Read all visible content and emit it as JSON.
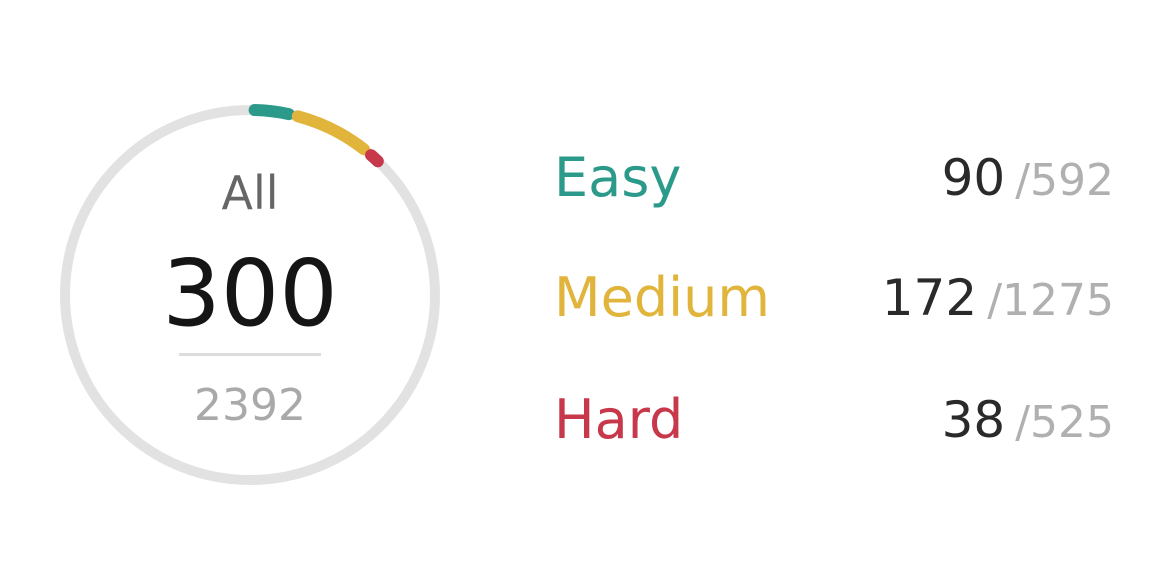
{
  "summary": {
    "label": "All",
    "solved": "300",
    "total": "2392"
  },
  "difficulties": [
    {
      "name": "Easy",
      "solved": "90",
      "total": "/592",
      "color": "#2b9a8a"
    },
    {
      "name": "Medium",
      "solved": "172",
      "total": "/1275",
      "color": "#e1b53b"
    },
    {
      "name": "Hard",
      "solved": "38",
      "total": "/525",
      "color": "#c8384b"
    }
  ],
  "ring": {
    "track_color": "#e2e2e2",
    "fraction_easy": 0.0376,
    "fraction_medium": 0.0719,
    "fraction_hard": 0.0159
  }
}
